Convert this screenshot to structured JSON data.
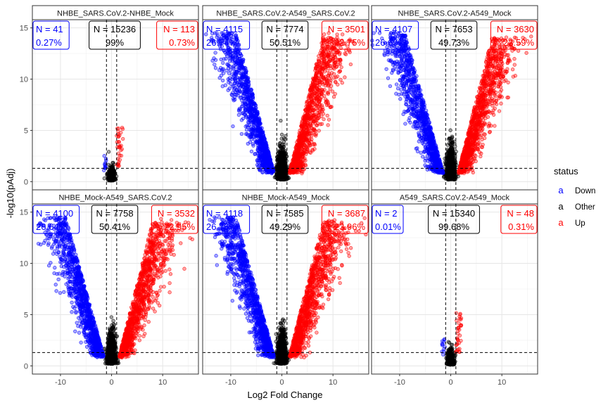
{
  "chart_data": {
    "type": "scatter",
    "title": "",
    "xlabel": "Log2 Fold Change",
    "ylabel": "-log10(pAdj)",
    "xlim": [
      -15.5,
      17
    ],
    "ylim": [
      -0.8,
      15.8
    ],
    "x_ticks": [
      -10,
      0,
      10
    ],
    "y_ticks": [
      0,
      5,
      10,
      15
    ],
    "grid": true,
    "threshold_lines": {
      "x": [
        -1,
        1
      ],
      "y": [
        1.3
      ]
    },
    "legend": {
      "title": "status",
      "placement": "right",
      "glyph": "a",
      "items": [
        {
          "label": "Down",
          "color": "#0000ff"
        },
        {
          "label": "Other",
          "color": "#000000"
        },
        {
          "label": "Up",
          "color": "#ff0000"
        }
      ]
    },
    "panels": [
      {
        "title": "NHBE_SARS.CoV.2-NHBE_Mock",
        "down": {
          "n": "N = 41",
          "pct": "0.27%"
        },
        "other": {
          "n": "N = 15236",
          "pct": "99%"
        },
        "up": {
          "n": "N = 113",
          "pct": "0.73%"
        },
        "spread": {
          "maxY": 5.5,
          "maxX": 2.2
        }
      },
      {
        "title": "NHBE_SARS.CoV.2-A549_SARS.CoV.2",
        "down": {
          "n": "N = 4115",
          "pct": "26.74%"
        },
        "other": {
          "n": "N = 7774",
          "pct": "50.51%"
        },
        "up": {
          "n": "N = 3501",
          "pct": "22.75%"
        },
        "spread": {
          "maxY": 14.5,
          "maxX": 11
        }
      },
      {
        "title": "NHBE_SARS.CoV.2-A549_Mock",
        "down": {
          "n": "N = 4107",
          "pct": "26.69%"
        },
        "other": {
          "n": "N = 7653",
          "pct": "49.73%"
        },
        "up": {
          "n": "N = 3630",
          "pct": "23.59%"
        },
        "spread": {
          "maxY": 14.5,
          "maxX": 11
        }
      },
      {
        "title": "NHBE_Mock-A549_SARS.CoV.2",
        "down": {
          "n": "N = 4100",
          "pct": "26.64%"
        },
        "other": {
          "n": "N = 7758",
          "pct": "50.41%"
        },
        "up": {
          "n": "N = 3532",
          "pct": "22.95%"
        },
        "spread": {
          "maxY": 14.5,
          "maxX": 11
        }
      },
      {
        "title": "NHBE_Mock-A549_Mock",
        "down": {
          "n": "N = 4118",
          "pct": "26.76%"
        },
        "other": {
          "n": "N = 7585",
          "pct": "49.29%"
        },
        "up": {
          "n": "N = 3687",
          "pct": "23.96%"
        },
        "spread": {
          "maxY": 14.5,
          "maxX": 11
        }
      },
      {
        "title": "A549_SARS.CoV.2-A549_Mock",
        "down": {
          "n": "N = 2",
          "pct": "0.01%"
        },
        "other": {
          "n": "N = 15340",
          "pct": "99.68%"
        },
        "up": {
          "n": "N = 48",
          "pct": "0.31%"
        },
        "spread": {
          "maxY": 5.5,
          "maxX": 2.2
        }
      }
    ]
  }
}
